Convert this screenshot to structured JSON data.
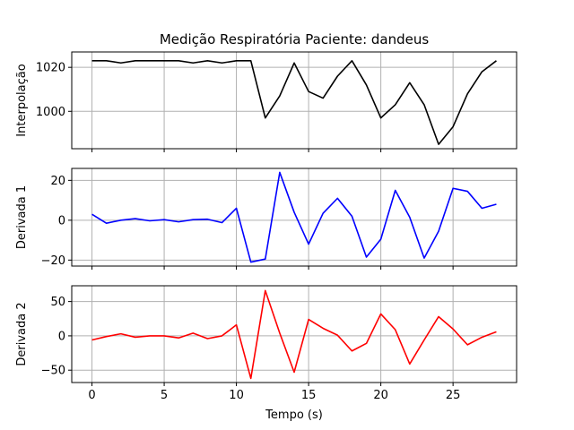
{
  "chart_data": [
    {
      "type": "line",
      "title": "Medição Respiratória Paciente: dandeus",
      "ylabel": "Interpolação",
      "xlabel": "",
      "color": "#000000",
      "xlim": [
        -1.4,
        29.4
      ],
      "ylim": [
        983,
        1027
      ],
      "xticks": [
        0,
        5,
        10,
        15,
        20,
        25
      ],
      "xtick_labels_visible": false,
      "yticks": [
        1000,
        1020
      ],
      "grid": true,
      "x": [
        0,
        1,
        2,
        3,
        4,
        5,
        6,
        7,
        8,
        9,
        10,
        11,
        12,
        13,
        14,
        15,
        16,
        17,
        18,
        19,
        20,
        21,
        22,
        23,
        24,
        25,
        26,
        27,
        28
      ],
      "values": [
        1023,
        1023,
        1022,
        1023,
        1023,
        1023,
        1023,
        1022,
        1023,
        1022,
        1023,
        1023,
        997,
        1007,
        1022,
        1009,
        1006,
        1016,
        1023,
        1012,
        997,
        1003,
        1013,
        1003,
        985,
        993,
        1008,
        1018,
        1023
      ]
    },
    {
      "type": "line",
      "title": "",
      "ylabel": "Derivada 1",
      "xlabel": "",
      "color": "#0000ff",
      "xlim": [
        -1.4,
        29.4
      ],
      "ylim": [
        -23,
        26
      ],
      "xticks": [
        0,
        5,
        10,
        15,
        20,
        25
      ],
      "xtick_labels_visible": false,
      "yticks": [
        -20,
        0,
        20
      ],
      "grid": true,
      "x": [
        0,
        1,
        2,
        3,
        4,
        5,
        6,
        7,
        8,
        9,
        10,
        11,
        12,
        13,
        14,
        15,
        16,
        17,
        18,
        19,
        20,
        21,
        22,
        23,
        24,
        25,
        26,
        27,
        28
      ],
      "values": [
        3,
        -1.5,
        0,
        0.8,
        -0.3,
        0.3,
        -0.8,
        0.3,
        0.5,
        -1.2,
        6,
        -21,
        -19.5,
        24,
        4,
        -12,
        3.5,
        11,
        2,
        -18.5,
        -9.5,
        15,
        1.5,
        -19,
        -5.5,
        16,
        14.5,
        6,
        8
      ]
    },
    {
      "type": "line",
      "title": "",
      "ylabel": "Derivada 2",
      "xlabel": "Tempo (s)",
      "color": "#ff0000",
      "xlim": [
        -1.4,
        29.4
      ],
      "ylim": [
        -68,
        73
      ],
      "xticks": [
        0,
        5,
        10,
        15,
        20,
        25
      ],
      "xtick_labels_visible": true,
      "yticks": [
        -50,
        0,
        50
      ],
      "grid": true,
      "x": [
        0,
        1,
        2,
        3,
        4,
        5,
        6,
        7,
        8,
        9,
        10,
        11,
        12,
        13,
        14,
        15,
        16,
        17,
        18,
        19,
        20,
        21,
        22,
        23,
        24,
        25,
        26,
        27,
        28
      ],
      "values": [
        -6,
        -1,
        3,
        -2,
        0,
        0,
        -3,
        4,
        -4,
        0,
        16,
        -62,
        66,
        4,
        -53,
        24,
        11,
        1,
        -22,
        -11,
        32,
        9,
        -41,
        -6,
        28,
        10,
        -13,
        -2,
        6
      ]
    }
  ]
}
